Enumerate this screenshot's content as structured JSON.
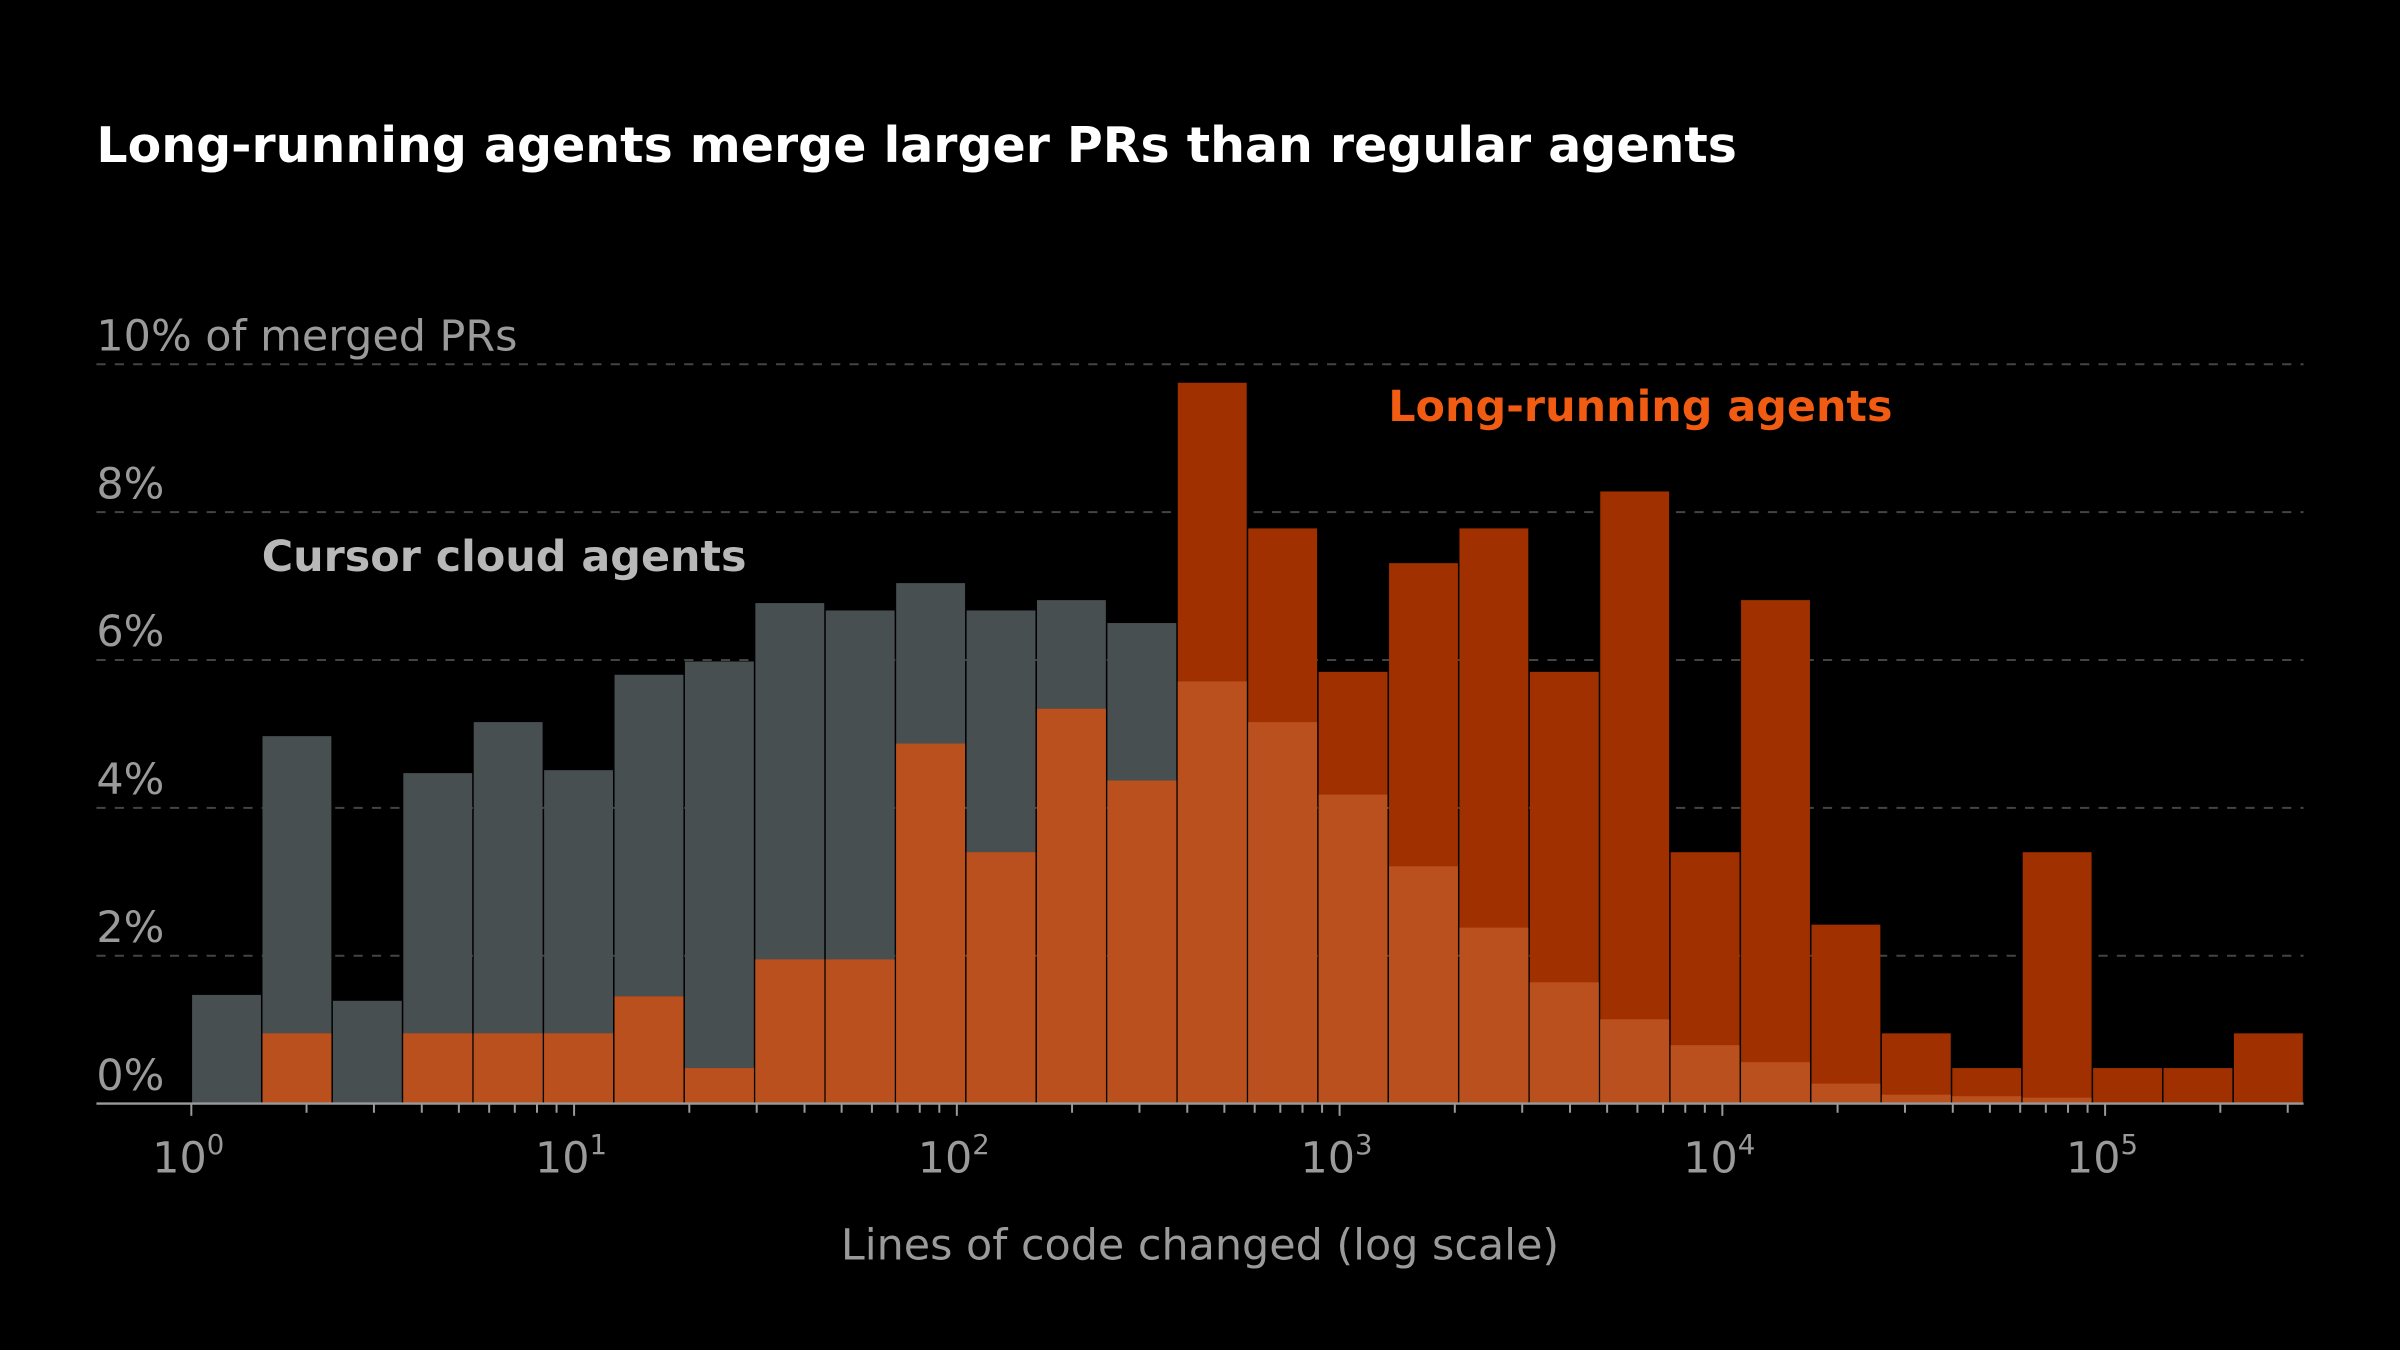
{
  "chart_data": {
    "type": "bar",
    "title": "Long-running agents merge larger PRs than regular agents",
    "xlabel": "Lines of code changed (log scale)",
    "ylabel": "10% of merged PRs",
    "x_scale": "log",
    "xlim": [
      1,
      330000
    ],
    "ylim": [
      0,
      10
    ],
    "y_ticks": [
      {
        "value": 0,
        "label": "0%"
      },
      {
        "value": 2,
        "label": "2%"
      },
      {
        "value": 4,
        "label": "4%"
      },
      {
        "value": 6,
        "label": "6%"
      },
      {
        "value": 8,
        "label": "8%"
      },
      {
        "value": 10,
        "label": "10% of merged PRs"
      }
    ],
    "x_ticks": [
      {
        "value": 1,
        "base": "10",
        "exp": "0"
      },
      {
        "value": 10,
        "base": "10",
        "exp": "1"
      },
      {
        "value": 100,
        "base": "10",
        "exp": "2"
      },
      {
        "value": 1000,
        "base": "10",
        "exp": "3"
      },
      {
        "value": 10000,
        "base": "10",
        "exp": "4"
      },
      {
        "value": 100000,
        "base": "10",
        "exp": "5"
      }
    ],
    "grid": "horizontal dashed",
    "series": [
      {
        "name": "Cursor cloud agents",
        "color": "#474f51",
        "values": [
          1.47,
          4.97,
          1.39,
          4.47,
          5.16,
          4.51,
          5.8,
          5.98,
          6.77,
          6.67,
          7.04,
          6.67,
          6.81,
          6.5,
          5.71,
          5.16,
          4.18,
          3.21,
          2.38,
          1.64,
          1.14,
          0.79,
          0.56,
          0.27,
          0.12,
          0.1,
          0.08,
          0.0,
          0.0,
          0.0
        ]
      },
      {
        "name": "Long-running agents",
        "color": "#a03000",
        "label_color": "#f25c12",
        "values": [
          0,
          0.95,
          0,
          0.95,
          0.95,
          0.95,
          1.45,
          0.48,
          1.95,
          1.95,
          4.87,
          3.4,
          5.34,
          4.37,
          9.75,
          7.78,
          5.84,
          7.31,
          7.78,
          5.84,
          8.28,
          3.4,
          6.81,
          2.42,
          0.95,
          0.48,
          3.4,
          0.48,
          0.48,
          0.95
        ]
      }
    ],
    "overlap_color": "#b9501d"
  }
}
